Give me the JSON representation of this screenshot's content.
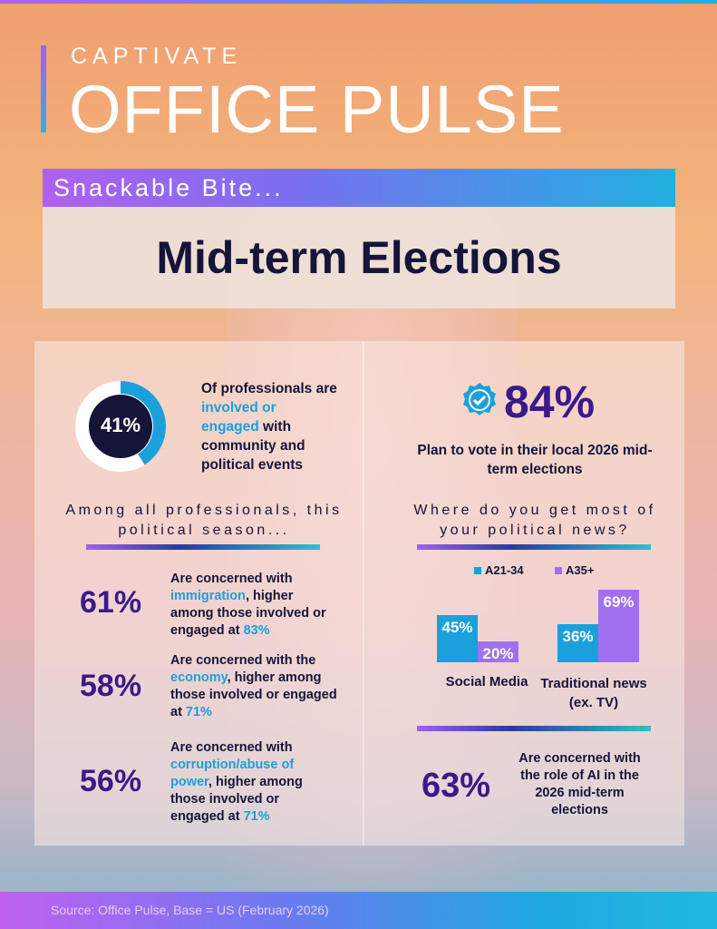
{
  "header": {
    "brand": "CAPTIVATE",
    "product": "OFFICE PULSE",
    "tagline": "Snackable Bite...",
    "title": "Mid-term Elections"
  },
  "donut": {
    "value_label": "41%",
    "value": 41,
    "text1": "Of professionals are ",
    "highlight": "involved or engaged",
    "text2": " with community and political events",
    "color": "#1ca0dc"
  },
  "vote": {
    "value": "84%",
    "text": "Plan to vote in their local 2026 mid-term elections"
  },
  "left": {
    "heading": "Among all professionals, this political season...",
    "stats": [
      {
        "value": "61%",
        "pre": "Are concerned with ",
        "highlight": "immigration",
        "post": ", higher among those involved or engaged at ",
        "num": "83%"
      },
      {
        "value": "58%",
        "pre": "Are concerned with the ",
        "highlight": "economy",
        "post": ", higher among those involved or engaged at ",
        "num": "71%"
      },
      {
        "value": "56%",
        "pre": "Are concerned with ",
        "highlight": "corruption/abuse of power",
        "post": ", higher among those involved or engaged at ",
        "num": "71%"
      }
    ]
  },
  "right": {
    "heading": "Where do you get most of your political news?",
    "ai_value": "63%",
    "ai_text": "Are concerned with the role of AI in the 2026 mid-term elections"
  },
  "chart_data": {
    "type": "bar",
    "categories": [
      "Social Media",
      "Traditional news (ex. TV)"
    ],
    "series": [
      {
        "name": "A21-34",
        "values": [
          45,
          36
        ],
        "labels": [
          "45%",
          "36%"
        ],
        "color": "#1ca0dc"
      },
      {
        "name": "A35+",
        "values": [
          20,
          69
        ],
        "labels": [
          "20%",
          "69%"
        ],
        "color": "#a070f0"
      }
    ],
    "ylim": [
      0,
      100
    ]
  },
  "footer": {
    "source": "Source: Office Pulse, Base = US (February 2026)"
  }
}
